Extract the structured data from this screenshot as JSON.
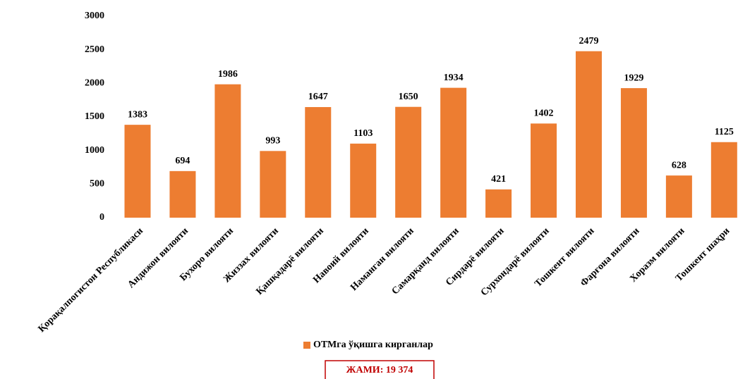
{
  "chart_data": {
    "type": "bar",
    "categories": [
      "Қорақалпогистон Республикаси",
      "Андижон вилояти",
      "Бухоро вилояти",
      "Жиззах вилояти",
      "Қашқадарё вилояти",
      "Навоий вилояти",
      "Наманган вилояти",
      "Самарқанд вилояти",
      "Сирдарё вилояти",
      "Сурхондарё вилояти",
      "Тошкент вилояти",
      "Фарғона вилояти",
      "Хоразм вилояти",
      "Тошкент шаҳри"
    ],
    "series": [
      {
        "name": "ОТМга ўқишга кирганлар",
        "color": "#ed7d31",
        "values": [
          1383,
          694,
          1986,
          993,
          1647,
          1103,
          1650,
          1934,
          421,
          1402,
          2479,
          1929,
          628,
          1125
        ]
      }
    ],
    "ylim": [
      0,
      3000
    ],
    "yticks": [
      0,
      500,
      1000,
      1500,
      2000,
      2500,
      3000
    ],
    "grid": false,
    "legend": "bottom",
    "annotation": "ЖАМИ: 19 374"
  }
}
